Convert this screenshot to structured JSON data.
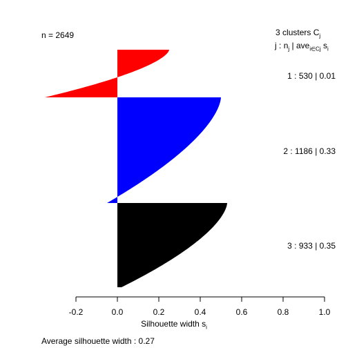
{
  "n_label": "n = 2649",
  "header": {
    "clusters_count": "3",
    "clusters_word": "clusters",
    "clusters_symbol": "C",
    "clusters_sub": "j",
    "legend_j": "j :",
    "legend_n": "n",
    "legend_n_sub": "j",
    "legend_ave": "| ave",
    "legend_ave_sub": "i∈Cj",
    "legend_s": "s",
    "legend_s_sub": "i"
  },
  "footer": {
    "average_label": "Average silhouette width :",
    "average_value": "0.27"
  },
  "chart_data": {
    "type": "bar",
    "orientation": "horizontal",
    "xlabel": "Silhouette width s",
    "xlabel_sub": "i",
    "xlim": [
      -0.2,
      1.0
    ],
    "xticks": [
      "-0.2",
      "0.0",
      "0.2",
      "0.4",
      "0.6",
      "0.8",
      "1.0"
    ],
    "clusters": [
      {
        "label": "1 :  530  |  0.01",
        "j": 1,
        "n": 530,
        "ave": 0.01,
        "color": "#ff0000",
        "max": 0.25,
        "min": -0.35
      },
      {
        "label": "2 :  1186  |  0.33",
        "j": 2,
        "n": 1186,
        "ave": 0.33,
        "color": "#0000ff",
        "max": 0.5,
        "min": -0.05
      },
      {
        "label": "3 :  933  |  0.35",
        "j": 3,
        "n": 933,
        "ave": 0.35,
        "color": "#000000",
        "max": 0.53,
        "min": 0.02
      }
    ]
  }
}
